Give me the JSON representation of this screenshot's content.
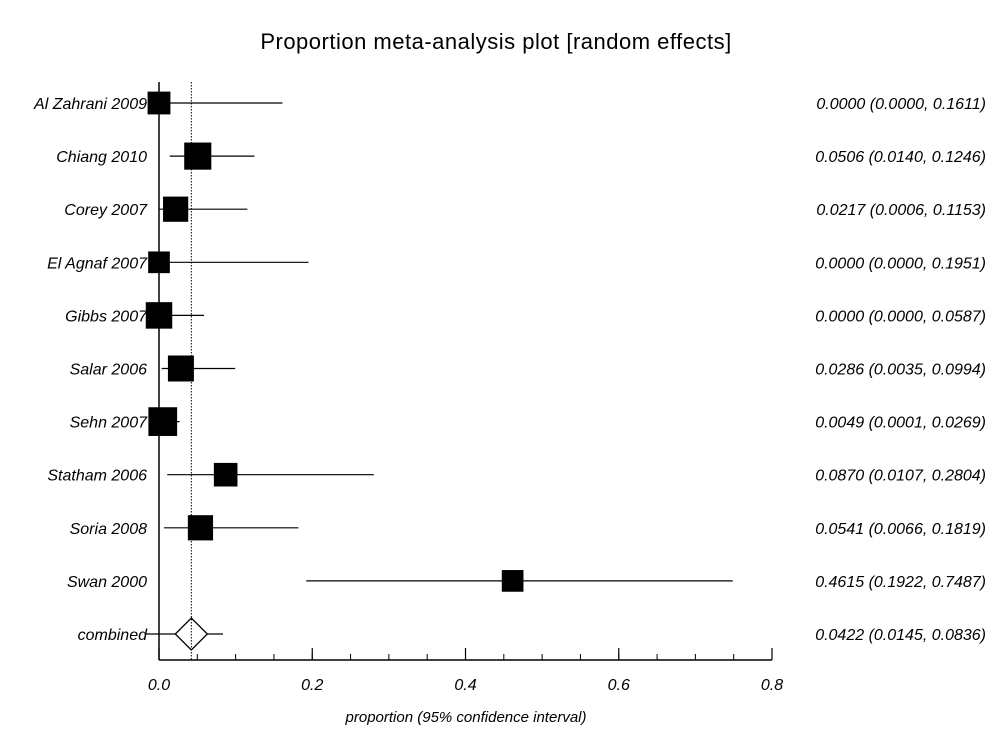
{
  "chart_data": {
    "type": "forest",
    "title": "Proportion meta-analysis plot [random effects]",
    "xlabel": "proportion (95% confidence interval)",
    "xlim": [
      0.0,
      0.8
    ],
    "x_ticks": [
      0.0,
      0.2,
      0.4,
      0.6,
      0.8
    ],
    "x_tick_labels": [
      "0.0",
      "0.2",
      "0.4",
      "0.6",
      "0.8"
    ],
    "x_minor_step": 0.05,
    "pooled_line": 0.0422,
    "studies": [
      {
        "label": "Al Zahrani 2009",
        "estimate": 0.0,
        "lower": 0.0,
        "upper": 0.1611,
        "ci_text": "0.0000 (0.0000, 0.1611)",
        "weight": 0.55
      },
      {
        "label": "Chiang 2010",
        "estimate": 0.0506,
        "lower": 0.014,
        "upper": 0.1246,
        "ci_text": "0.0506 (0.0140, 0.1246)",
        "weight": 0.82
      },
      {
        "label": "Corey 2007",
        "estimate": 0.0217,
        "lower": 0.0006,
        "upper": 0.1153,
        "ci_text": "0.0217 (0.0006, 0.1153)",
        "weight": 0.7
      },
      {
        "label": "El Agnaf 2007",
        "estimate": 0.0,
        "lower": 0.0,
        "upper": 0.1951,
        "ci_text": "0.0000 (0.0000, 0.1951)",
        "weight": 0.48
      },
      {
        "label": "Gibbs 2007",
        "estimate": 0.0,
        "lower": 0.0,
        "upper": 0.0587,
        "ci_text": "0.0000 (0.0000, 0.0587)",
        "weight": 0.78
      },
      {
        "label": "Salar 2006",
        "estimate": 0.0286,
        "lower": 0.0035,
        "upper": 0.0994,
        "ci_text": "0.0286 (0.0035, 0.0994)",
        "weight": 0.75
      },
      {
        "label": "Sehn 2007",
        "estimate": 0.0049,
        "lower": 0.0001,
        "upper": 0.0269,
        "ci_text": "0.0049 (0.0001, 0.0269)",
        "weight": 0.92
      },
      {
        "label": "Statham 2006",
        "estimate": 0.087,
        "lower": 0.0107,
        "upper": 0.2804,
        "ci_text": "0.0870 (0.0107, 0.2804)",
        "weight": 0.6
      },
      {
        "label": "Soria 2008",
        "estimate": 0.0541,
        "lower": 0.0066,
        "upper": 0.1819,
        "ci_text": "0.0541 (0.0066, 0.1819)",
        "weight": 0.7
      },
      {
        "label": "Swan 2000",
        "estimate": 0.4615,
        "lower": 0.1922,
        "upper": 0.7487,
        "ci_text": "0.4615 (0.1922, 0.7487)",
        "weight": 0.48
      }
    ],
    "combined": {
      "label": "combined",
      "estimate": 0.0422,
      "lower": 0.0145,
      "upper": 0.0836,
      "ci_text": "0.0422 (0.0145, 0.0836)"
    }
  }
}
